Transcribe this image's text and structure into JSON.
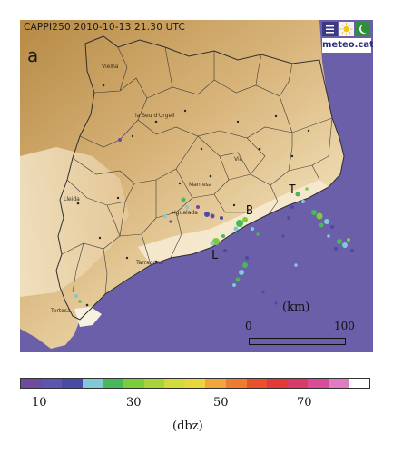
{
  "map": {
    "header": "CAPPI250 2010-10-13 21.30 UTC",
    "panel_letter": "a",
    "logo_text": "meteo.cat",
    "logo_icons": [
      "menu-icon",
      "sun-icon",
      "moon-icon"
    ],
    "colors": {
      "sea": "#6a5fa8",
      "land_high": "#b78a45",
      "land_low": "#f3e4c6",
      "border": "#3b3b3b"
    },
    "cities": [
      "Vielha",
      "la Seu d'Urgell",
      "Vic",
      "Manresa",
      "Lleida",
      "Igualada",
      "Tarragona",
      "Tortosa"
    ],
    "sites": [
      "T",
      "B",
      "L"
    ],
    "scale": {
      "unit_label": "(km)",
      "start": "0",
      "end": "100"
    }
  },
  "colorbar": {
    "colors": [
      "#6e4aa0",
      "#5a57b0",
      "#494aa6",
      "#83c8d8",
      "#48b85a",
      "#7ccc3e",
      "#a8d43a",
      "#cfdc3c",
      "#e8d63a",
      "#f2a53a",
      "#ee7b32",
      "#e9502e",
      "#e23a3a",
      "#da3a6a",
      "#d94c9a",
      "#e27cc2",
      "#ffffff"
    ],
    "ticks": [
      "10",
      "30",
      "50",
      "70"
    ],
    "unit": "(dbz)"
  }
}
